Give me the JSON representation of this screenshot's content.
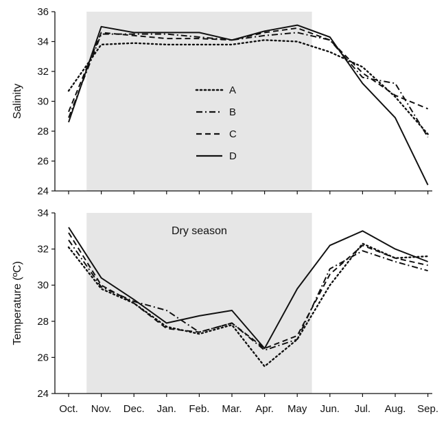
{
  "chart_data": {
    "type": "line",
    "categories": [
      "Oct.",
      "Nov.",
      "Dec.",
      "Jan.",
      "Feb.",
      "Mar.",
      "Apr.",
      "May",
      "Jun.",
      "Jul.",
      "Aug.",
      "Sep."
    ],
    "shaded_region": {
      "from": "Nov.",
      "to": "May",
      "label": "Dry season",
      "color": "#e6e6e6"
    },
    "panels": [
      {
        "ylabel": "Salinity",
        "ylim": [
          24,
          36
        ],
        "yticks": [
          "24",
          "26",
          "28",
          "30",
          "32",
          "34",
          "36"
        ],
        "series": [
          {
            "name": "A",
            "style": "dotted",
            "values": [
              30.7,
              33.8,
              33.9,
              33.8,
              33.8,
              33.8,
              34.1,
              34.0,
              33.3,
              32.3,
              30.3,
              27.8
            ]
          },
          {
            "name": "B",
            "style": "dashdot",
            "values": [
              28.9,
              34.5,
              34.5,
              34.5,
              34.3,
              34.1,
              34.4,
              34.6,
              34.1,
              31.6,
              31.2,
              27.6
            ]
          },
          {
            "name": "C",
            "style": "dashed",
            "values": [
              29.3,
              34.6,
              34.4,
              34.2,
              34.2,
              34.1,
              34.6,
              34.9,
              34.1,
              31.9,
              30.4,
              29.5
            ]
          },
          {
            "name": "D",
            "style": "solid",
            "values": [
              28.6,
              35.0,
              34.6,
              34.6,
              34.6,
              34.1,
              34.7,
              35.1,
              34.3,
              31.2,
              28.9,
              24.4
            ]
          }
        ]
      },
      {
        "ylabel": "Temperature (ºC)",
        "ylim": [
          24,
          34
        ],
        "yticks": [
          "24",
          "26",
          "28",
          "30",
          "32",
          "34"
        ],
        "series": [
          {
            "name": "A",
            "style": "dotted",
            "values": [
              32.1,
              29.8,
              29.0,
              27.7,
              27.3,
              27.8,
              25.5,
              27.0,
              30.0,
              32.3,
              31.5,
              31.6
            ]
          },
          {
            "name": "B",
            "style": "dashdot",
            "values": [
              32.5,
              29.9,
              29.1,
              28.6,
              27.4,
              27.9,
              26.4,
              27.0,
              30.9,
              31.9,
              31.3,
              30.8
            ]
          },
          {
            "name": "C",
            "style": "dashed",
            "values": [
              32.9,
              30.0,
              29.0,
              27.6,
              27.4,
              27.9,
              26.5,
              27.2,
              30.6,
              32.2,
              31.5,
              31.1
            ]
          },
          {
            "name": "D",
            "style": "solid",
            "values": [
              33.2,
              30.4,
              29.2,
              27.9,
              28.3,
              28.6,
              26.5,
              29.8,
              32.2,
              33.0,
              32.0,
              31.3
            ]
          }
        ]
      }
    ],
    "legend": {
      "placement": "inside top panel, center"
    }
  }
}
